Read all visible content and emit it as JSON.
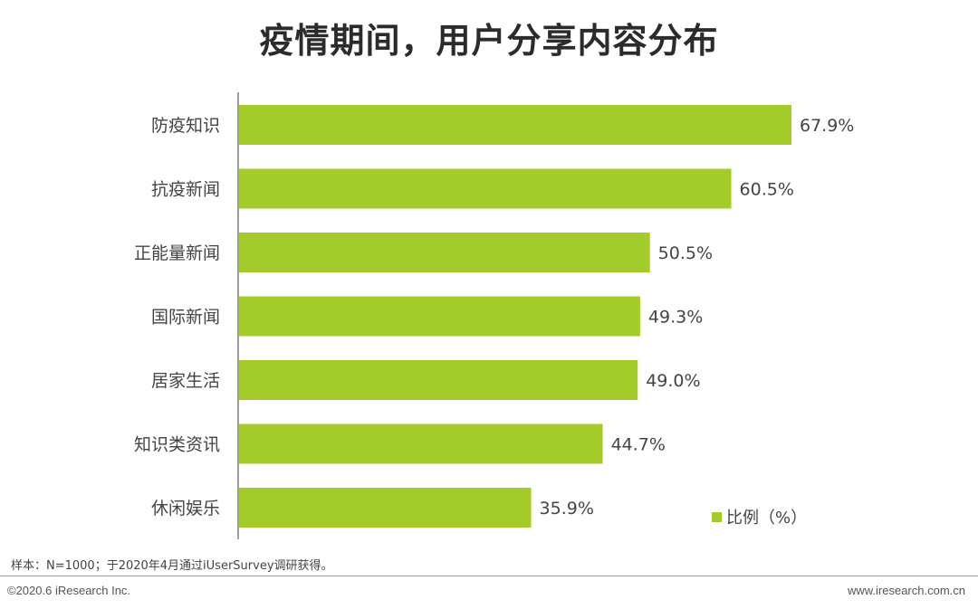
{
  "colors": {
    "bar": "#a3cb2a",
    "axis": "#7f7f7f",
    "text": "#444444"
  },
  "chart_data": {
    "type": "bar",
    "orientation": "horizontal",
    "title": "疫情期间，用户分享内容分布",
    "categories": [
      "防疫知识",
      "抗疫新闻",
      "正能量新闻",
      "国际新闻",
      "居家生活",
      "知识类资讯",
      "休闲娱乐"
    ],
    "series": [
      {
        "name": "比例（%）",
        "values": [
          67.9,
          60.5,
          50.5,
          49.3,
          49.0,
          44.7,
          35.9
        ]
      }
    ],
    "value_labels": [
      "67.9%",
      "60.5%",
      "50.5%",
      "49.3%",
      "49.0%",
      "44.7%",
      "35.9%"
    ],
    "xlim": [
      0,
      100
    ],
    "grid": false,
    "legend_position": "bottom-right"
  },
  "footer": {
    "note": "样本：N=1000；于2020年4月通过iUserSurvey调研获得。",
    "copyright": "©2020.6 iResearch Inc.",
    "website": "www.iresearch.com.cn"
  }
}
